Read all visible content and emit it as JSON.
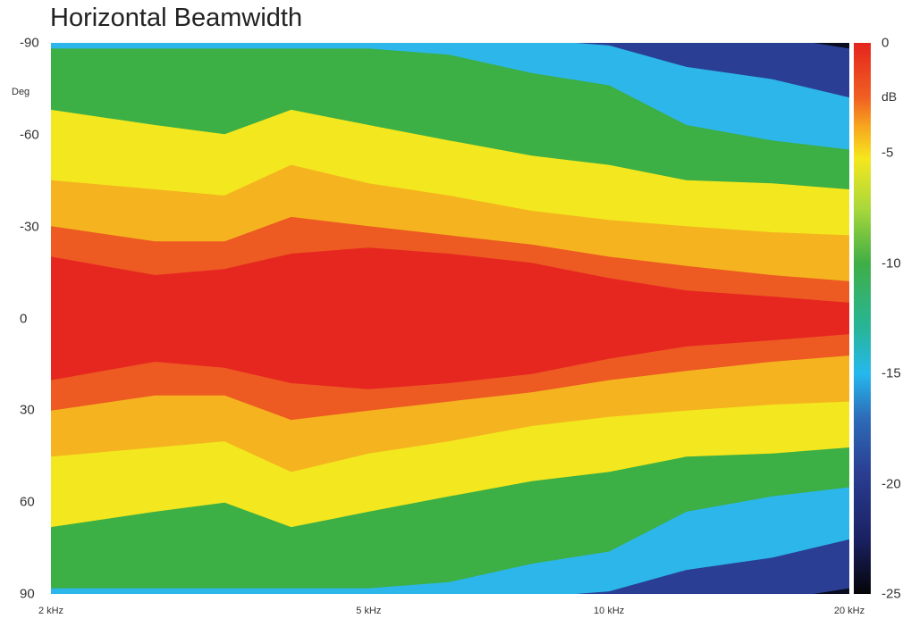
{
  "chart_data": {
    "type": "heatmap",
    "title": "Horizontal Beamwidth",
    "xlabel": "",
    "ylabel": "Deg",
    "x_scale": "log",
    "xlim_hz": [
      2000,
      20000
    ],
    "ylim": [
      -90,
      90
    ],
    "x_ticks": [
      {
        "hz": 2000,
        "label": "2 kHz"
      },
      {
        "hz": 5000,
        "label": "5 kHz"
      },
      {
        "hz": 10000,
        "label": "10 kHz"
      },
      {
        "hz": 20000,
        "label": "20 kHz"
      }
    ],
    "y_ticks": [
      "-90",
      "-60",
      "-30",
      "0",
      "30",
      "60",
      "90"
    ],
    "colorbar": {
      "label": "dB",
      "range": [
        -25,
        0
      ],
      "ticks": [
        "0",
        "-5",
        "-10",
        "-15",
        "-20",
        "-25"
      ]
    },
    "contours": {
      "frequency_hz": [
        2000,
        2700,
        3300,
        4000,
        5000,
        6300,
        8000,
        10000,
        12500,
        16000,
        20000
      ],
      "db_levels": [
        -1,
        -3,
        -6,
        -10,
        -16,
        -20,
        -25
      ],
      "angle_at_level_deg": [
        [
          20,
          14,
          16,
          21,
          23,
          21,
          18,
          13,
          9,
          7,
          5
        ],
        [
          30,
          25,
          25,
          33,
          30,
          27,
          24,
          20,
          17,
          14,
          12
        ],
        [
          45,
          42,
          40,
          50,
          44,
          40,
          35,
          32,
          30,
          28,
          27
        ],
        [
          68,
          63,
          60,
          68,
          63,
          58,
          53,
          50,
          45,
          44,
          42
        ],
        [
          88,
          88,
          88,
          88,
          88,
          86,
          80,
          76,
          63,
          58,
          55
        ],
        [
          92,
          92,
          92,
          92,
          92,
          92,
          91,
          89,
          82,
          78,
          72
        ],
        [
          95,
          95,
          95,
          95,
          95,
          95,
          95,
          95,
          95,
          92,
          88
        ]
      ]
    },
    "level_colors": [
      "#e62720",
      "#ed5a22",
      "#f5b41f",
      "#f3e71f",
      "#3caf45",
      "#2db6ea",
      "#2a3f93",
      "#0a0d20"
    ]
  }
}
